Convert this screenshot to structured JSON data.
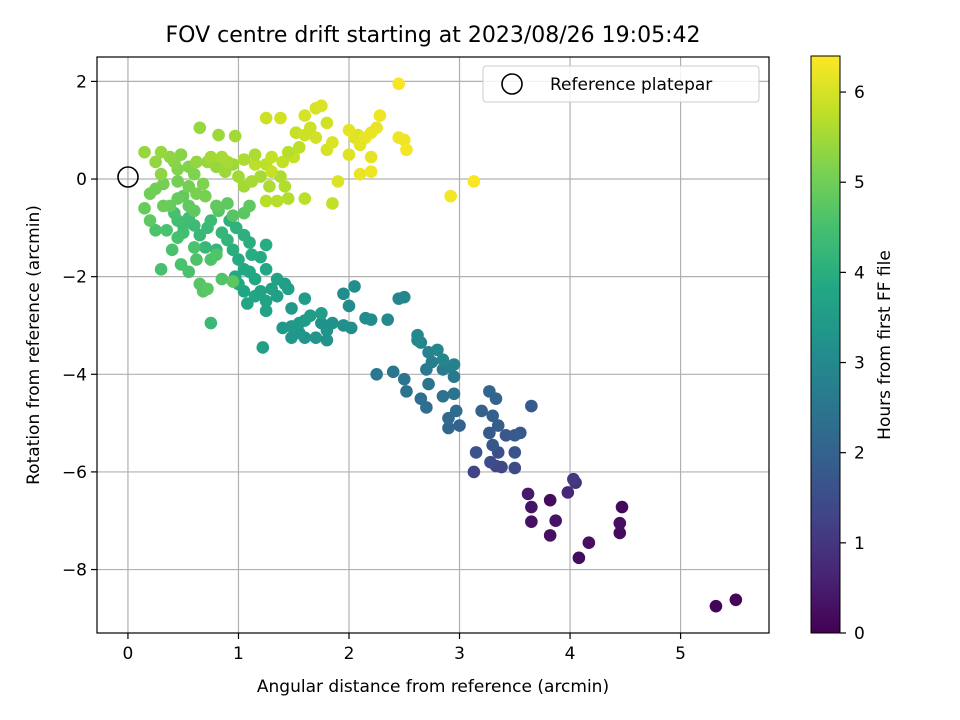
{
  "chart_data": {
    "type": "scatter",
    "title": "FOV centre drift starting at 2023/08/26 19:05:42",
    "xlabel": "Angular distance from reference (arcmin)",
    "ylabel": "Rotation from reference (arcmin)",
    "xlim": [
      -0.28,
      5.8
    ],
    "ylim": [
      -9.3,
      2.5
    ],
    "xticks": [
      0,
      1,
      2,
      3,
      4,
      5
    ],
    "yticks": [
      -8,
      -6,
      -4,
      -2,
      0,
      2
    ],
    "grid": true,
    "legend": {
      "placement": "top-right",
      "entries": [
        "Reference platepar"
      ]
    },
    "reference_point": {
      "x": 0,
      "y": 0
    },
    "colorbar": {
      "label": "Hours from first FF file",
      "range": [
        0,
        6.4
      ],
      "ticks": [
        0,
        1,
        2,
        3,
        4,
        5,
        6
      ],
      "colormap": "viridis"
    },
    "points": [
      [
        5.32,
        -8.75,
        0.05
      ],
      [
        5.5,
        -8.62,
        0.1
      ],
      [
        4.08,
        -7.76,
        0.2
      ],
      [
        4.17,
        -7.45,
        0.25
      ],
      [
        3.82,
        -7.3,
        0.3
      ],
      [
        4.45,
        -7.25,
        0.2
      ],
      [
        4.45,
        -7.05,
        0.25
      ],
      [
        3.87,
        -7.0,
        0.35
      ],
      [
        3.65,
        -7.02,
        0.3
      ],
      [
        4.47,
        -6.72,
        0.15
      ],
      [
        3.65,
        -6.72,
        0.35
      ],
      [
        3.82,
        -6.58,
        0.2
      ],
      [
        3.62,
        -6.45,
        0.45
      ],
      [
        3.98,
        -6.42,
        0.7
      ],
      [
        4.05,
        -6.22,
        0.9
      ],
      [
        4.03,
        -6.15,
        1.05
      ],
      [
        3.13,
        -6.0,
        1.3
      ],
      [
        3.33,
        -5.88,
        1.35
      ],
      [
        3.38,
        -5.9,
        1.4
      ],
      [
        3.5,
        -5.92,
        1.45
      ],
      [
        3.28,
        -5.8,
        1.5
      ],
      [
        3.35,
        -5.6,
        1.55
      ],
      [
        3.15,
        -5.6,
        1.6
      ],
      [
        3.5,
        -5.6,
        1.65
      ],
      [
        3.3,
        -5.45,
        1.7
      ],
      [
        3.42,
        -5.25,
        1.72
      ],
      [
        3.55,
        -5.2,
        1.75
      ],
      [
        3.27,
        -5.2,
        1.8
      ],
      [
        3.5,
        -5.25,
        1.85
      ],
      [
        3.35,
        -5.05,
        1.9
      ],
      [
        3.65,
        -4.65,
        1.8
      ],
      [
        3.3,
        -4.85,
        1.95
      ],
      [
        3.2,
        -4.75,
        2.0
      ],
      [
        3.33,
        -4.5,
        2.05
      ],
      [
        3.27,
        -4.35,
        2.1
      ],
      [
        3.0,
        -5.05,
        2.0
      ],
      [
        2.9,
        -5.1,
        2.1
      ],
      [
        2.9,
        -4.9,
        2.2
      ],
      [
        2.97,
        -4.75,
        2.25
      ],
      [
        2.7,
        -4.68,
        2.3
      ],
      [
        2.65,
        -4.5,
        2.3
      ],
      [
        2.85,
        -4.45,
        2.35
      ],
      [
        2.95,
        -4.4,
        2.4
      ],
      [
        2.72,
        -4.2,
        2.45
      ],
      [
        2.5,
        -4.1,
        2.5
      ],
      [
        2.52,
        -4.35,
        2.45
      ],
      [
        2.4,
        -3.95,
        2.5
      ],
      [
        2.25,
        -4.0,
        2.55
      ],
      [
        2.95,
        -4.05,
        2.55
      ],
      [
        2.7,
        -3.9,
        2.6
      ],
      [
        2.85,
        -3.9,
        2.65
      ],
      [
        2.9,
        -3.85,
        2.7
      ],
      [
        2.75,
        -3.75,
        2.75
      ],
      [
        2.95,
        -3.8,
        2.8
      ],
      [
        2.72,
        -3.55,
        2.85
      ],
      [
        2.65,
        -3.35,
        2.9
      ],
      [
        2.8,
        -3.5,
        2.95
      ],
      [
        2.85,
        -3.7,
        2.9
      ],
      [
        2.62,
        -3.3,
        3.0
      ],
      [
        2.62,
        -3.2,
        3.0
      ],
      [
        2.45,
        -2.45,
        2.9
      ],
      [
        2.5,
        -2.42,
        2.95
      ],
      [
        2.35,
        -2.88,
        3.0
      ],
      [
        2.2,
        -2.88,
        3.05
      ],
      [
        2.15,
        -2.85,
        3.1
      ],
      [
        2.0,
        -2.6,
        3.05
      ],
      [
        2.05,
        -2.2,
        3.1
      ],
      [
        1.95,
        -2.35,
        3.1
      ],
      [
        2.02,
        -3.05,
        3.15
      ],
      [
        1.95,
        -3.0,
        3.15
      ],
      [
        1.85,
        -2.95,
        3.2
      ],
      [
        1.75,
        -2.95,
        3.2
      ],
      [
        1.8,
        -3.1,
        3.25
      ],
      [
        1.8,
        -3.3,
        3.25
      ],
      [
        1.7,
        -3.25,
        3.3
      ],
      [
        1.6,
        -3.25,
        3.3
      ],
      [
        1.55,
        -3.15,
        3.35
      ],
      [
        1.48,
        -3.25,
        3.35
      ],
      [
        1.4,
        -3.05,
        3.4
      ],
      [
        1.48,
        -3.02,
        3.4
      ],
      [
        1.55,
        -2.95,
        3.45
      ],
      [
        1.48,
        -2.65,
        3.45
      ],
      [
        1.6,
        -2.9,
        3.5
      ],
      [
        1.65,
        -2.8,
        3.5
      ],
      [
        1.6,
        -2.45,
        3.5
      ],
      [
        1.75,
        -2.75,
        3.55
      ],
      [
        1.42,
        -2.15,
        3.55
      ],
      [
        1.35,
        -2.4,
        3.6
      ],
      [
        1.45,
        -2.25,
        3.6
      ],
      [
        1.3,
        -2.25,
        3.65
      ],
      [
        1.35,
        -2.05,
        3.65
      ],
      [
        1.25,
        -2.5,
        3.7
      ],
      [
        1.2,
        -2.3,
        3.7
      ],
      [
        1.25,
        -2.7,
        3.7
      ],
      [
        1.15,
        -2.4,
        3.75
      ],
      [
        1.05,
        -2.3,
        3.75
      ],
      [
        1.08,
        -2.55,
        3.75
      ],
      [
        1.15,
        -2.05,
        3.8
      ],
      [
        1.25,
        -1.85,
        3.8
      ],
      [
        1.1,
        -1.9,
        3.8
      ],
      [
        1.05,
        -1.85,
        3.85
      ],
      [
        0.97,
        -2.0,
        3.85
      ],
      [
        1.0,
        -2.15,
        3.85
      ],
      [
        1.2,
        -1.6,
        3.9
      ],
      [
        1.0,
        -1.65,
        3.9
      ],
      [
        1.12,
        -1.55,
        3.95
      ],
      [
        1.25,
        -1.35,
        3.95
      ],
      [
        1.1,
        -1.3,
        4.0
      ],
      [
        1.22,
        -3.45,
        3.6
      ],
      [
        0.95,
        -1.45,
        4.0
      ],
      [
        1.05,
        -1.15,
        4.05
      ],
      [
        0.98,
        -1.0,
        4.1
      ],
      [
        0.92,
        -0.85,
        4.1
      ],
      [
        0.9,
        -1.25,
        4.15
      ],
      [
        0.85,
        -1.1,
        4.2
      ],
      [
        0.8,
        -1.45,
        4.2
      ],
      [
        0.7,
        -1.4,
        4.25
      ],
      [
        0.65,
        -1.15,
        4.25
      ],
      [
        0.72,
        -1.0,
        4.3
      ],
      [
        0.75,
        -0.85,
        4.35
      ],
      [
        0.6,
        -0.95,
        4.35
      ],
      [
        0.55,
        -0.8,
        4.4
      ],
      [
        0.5,
        -0.95,
        4.4
      ],
      [
        0.45,
        -0.85,
        4.45
      ],
      [
        0.42,
        -0.7,
        4.5
      ],
      [
        0.5,
        -1.1,
        4.45
      ],
      [
        0.45,
        -1.2,
        4.5
      ],
      [
        0.4,
        -1.45,
        4.55
      ],
      [
        0.35,
        -1.05,
        4.55
      ],
      [
        0.25,
        -1.05,
        4.6
      ],
      [
        0.3,
        -1.85,
        4.5
      ],
      [
        0.48,
        -1.75,
        4.55
      ],
      [
        0.55,
        -1.9,
        4.55
      ],
      [
        0.62,
        -1.65,
        4.6
      ],
      [
        0.6,
        -1.4,
        4.6
      ],
      [
        0.75,
        -1.65,
        4.6
      ],
      [
        0.8,
        -1.55,
        4.65
      ],
      [
        0.85,
        -2.05,
        4.65
      ],
      [
        0.65,
        -2.15,
        4.7
      ],
      [
        0.68,
        -2.3,
        4.7
      ],
      [
        0.72,
        -2.25,
        4.75
      ],
      [
        0.75,
        -2.95,
        4.3
      ],
      [
        0.95,
        -2.1,
        4.75
      ],
      [
        0.82,
        -0.65,
        4.7
      ],
      [
        0.95,
        -0.75,
        4.7
      ],
      [
        1.05,
        -0.7,
        4.75
      ],
      [
        1.1,
        -0.55,
        4.8
      ],
      [
        0.9,
        -0.5,
        4.8
      ],
      [
        0.8,
        -0.55,
        4.85
      ],
      [
        0.6,
        -0.65,
        4.8
      ],
      [
        0.55,
        -0.55,
        4.85
      ],
      [
        0.5,
        -0.35,
        4.85
      ],
      [
        0.45,
        -0.4,
        4.9
      ],
      [
        0.38,
        -0.55,
        4.9
      ],
      [
        0.32,
        -0.55,
        4.95
      ],
      [
        0.2,
        -0.85,
        4.8
      ],
      [
        0.15,
        -0.6,
        4.9
      ],
      [
        0.2,
        -0.3,
        5.0
      ],
      [
        0.25,
        -0.2,
        5.0
      ],
      [
        0.32,
        -0.1,
        5.05
      ],
      [
        0.45,
        -0.05,
        5.05
      ],
      [
        0.55,
        -0.15,
        5.05
      ],
      [
        0.62,
        -0.3,
        5.1
      ],
      [
        0.7,
        -0.35,
        5.1
      ],
      [
        0.68,
        -0.1,
        5.15
      ],
      [
        0.6,
        0.1,
        5.15
      ],
      [
        0.55,
        0.25,
        5.2
      ],
      [
        0.45,
        0.2,
        5.2
      ],
      [
        0.42,
        0.35,
        5.25
      ],
      [
        0.48,
        0.5,
        5.25
      ],
      [
        0.38,
        0.45,
        5.3
      ],
      [
        0.3,
        0.1,
        5.3
      ],
      [
        0.25,
        0.35,
        5.35
      ],
      [
        0.15,
        0.55,
        5.4
      ],
      [
        0.3,
        0.55,
        5.4
      ],
      [
        0.62,
        0.35,
        5.35
      ],
      [
        0.72,
        0.35,
        5.4
      ],
      [
        0.8,
        0.25,
        5.4
      ],
      [
        0.88,
        0.15,
        5.45
      ],
      [
        0.95,
        0.3,
        5.45
      ],
      [
        1.0,
        0.05,
        5.5
      ],
      [
        1.05,
        -0.15,
        5.5
      ],
      [
        1.12,
        -0.05,
        5.55
      ],
      [
        1.2,
        0.05,
        5.55
      ],
      [
        1.28,
        -0.15,
        5.6
      ],
      [
        1.38,
        0.05,
        5.6
      ],
      [
        1.42,
        -0.15,
        5.65
      ],
      [
        1.45,
        -0.4,
        5.65
      ],
      [
        1.35,
        -0.45,
        5.7
      ],
      [
        1.25,
        -0.45,
        5.7
      ],
      [
        1.15,
        0.3,
        5.75
      ],
      [
        1.25,
        0.3,
        5.75
      ],
      [
        1.3,
        0.45,
        5.8
      ],
      [
        1.4,
        0.35,
        5.8
      ],
      [
        1.5,
        0.45,
        5.85
      ],
      [
        1.3,
        0.15,
        5.85
      ],
      [
        0.65,
        1.05,
        5.4
      ],
      [
        0.82,
        0.9,
        5.45
      ],
      [
        0.97,
        0.88,
        5.5
      ],
      [
        0.75,
        0.45,
        5.5
      ],
      [
        0.85,
        0.45,
        5.55
      ],
      [
        0.9,
        0.35,
        5.55
      ],
      [
        1.05,
        0.4,
        5.6
      ],
      [
        1.15,
        0.5,
        5.6
      ],
      [
        1.45,
        0.55,
        5.7
      ],
      [
        1.55,
        0.65,
        5.75
      ],
      [
        1.6,
        -0.4,
        5.75
      ],
      [
        1.85,
        -0.5,
        5.8
      ],
      [
        1.52,
        0.95,
        5.85
      ],
      [
        1.6,
        0.9,
        5.9
      ],
      [
        1.65,
        1.05,
        5.9
      ],
      [
        1.7,
        0.85,
        5.95
      ],
      [
        1.8,
        1.15,
        5.95
      ],
      [
        1.25,
        1.25,
        5.9
      ],
      [
        1.38,
        1.25,
        5.95
      ],
      [
        1.6,
        1.3,
        6.0
      ],
      [
        1.7,
        1.45,
        6.0
      ],
      [
        1.75,
        1.5,
        6.05
      ],
      [
        1.8,
        0.6,
        6.0
      ],
      [
        1.85,
        0.75,
        6.05
      ],
      [
        1.9,
        -0.05,
        6.05
      ],
      [
        2.0,
        0.5,
        6.1
      ],
      [
        2.05,
        0.85,
        6.1
      ],
      [
        2.08,
        0.9,
        6.1
      ],
      [
        2.0,
        1.0,
        6.15
      ],
      [
        2.1,
        0.7,
        6.15
      ],
      [
        2.15,
        0.85,
        6.2
      ],
      [
        2.2,
        0.95,
        6.2
      ],
      [
        2.2,
        0.45,
        6.15
      ],
      [
        2.25,
        1.05,
        6.2
      ],
      [
        2.28,
        1.3,
        6.25
      ],
      [
        2.45,
        0.85,
        6.25
      ],
      [
        2.5,
        0.8,
        6.25
      ],
      [
        2.52,
        0.6,
        6.3
      ],
      [
        2.1,
        0.1,
        6.2
      ],
      [
        2.2,
        0.15,
        6.25
      ],
      [
        2.45,
        1.95,
        6.35
      ],
      [
        2.92,
        -0.35,
        6.3
      ],
      [
        3.13,
        -0.05,
        6.35
      ]
    ]
  }
}
